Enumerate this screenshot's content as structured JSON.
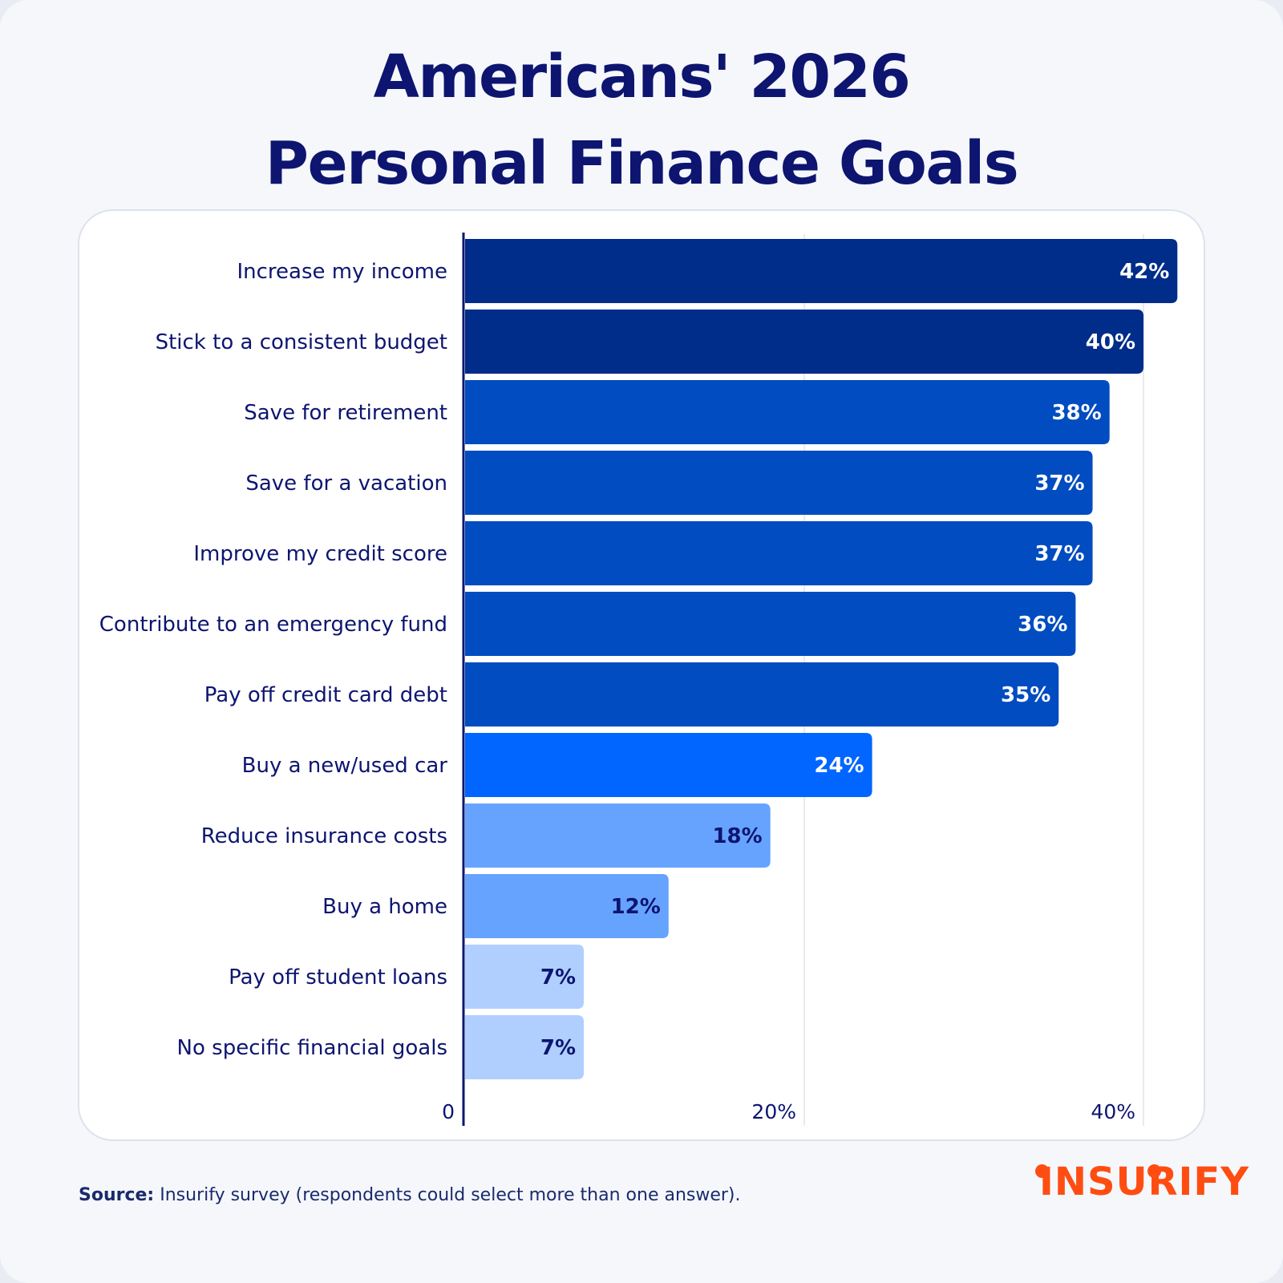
{
  "title_lines": [
    "Americans' 2026",
    "Personal Finance Goals"
  ],
  "chart_data": {
    "type": "bar",
    "orientation": "horizontal",
    "categories": [
      "Increase my income",
      "Stick to a consistent budget",
      "Save for retirement",
      "Save for a vacation",
      "Improve my credit score",
      "Contribute to an emergency fund",
      "Pay off credit card debt",
      "Buy a new/used car",
      "Reduce insurance costs",
      "Buy a home",
      "Pay off student loans",
      "No specific financial goals"
    ],
    "values": [
      42,
      40,
      38,
      37,
      37,
      36,
      35,
      24,
      18,
      12,
      7,
      7
    ],
    "value_labels": [
      "42%",
      "40%",
      "38%",
      "37%",
      "37%",
      "36%",
      "35%",
      "24%",
      "18%",
      "12%",
      "7%",
      "7%"
    ],
    "bar_colors": [
      "#002c8a",
      "#002c8a",
      "#014cc0",
      "#014cc0",
      "#014cc0",
      "#014cc0",
      "#014cc0",
      "#0066ff",
      "#66a3ff",
      "#66a3ff",
      "#b0cfff",
      "#b0cfff"
    ],
    "label_colors": [
      "#ffffff",
      "#ffffff",
      "#ffffff",
      "#ffffff",
      "#ffffff",
      "#ffffff",
      "#ffffff",
      "#ffffff",
      "#0d1570",
      "#0d1570",
      "#0d1570",
      "#0d1570"
    ],
    "x_ticks": [
      0,
      20,
      40
    ],
    "x_tick_labels": [
      "0",
      "20%",
      "40%"
    ],
    "xlim": [
      0,
      42
    ],
    "grid": true
  },
  "footer": {
    "source_label": "Source:",
    "source_text": " Insurify survey (respondents could select more than one answer)."
  },
  "brand": {
    "logo_text": "INSURIFY",
    "logo_color": "#ff4d12",
    "title_color": "#0d1570",
    "text_color": "#0d1570"
  }
}
